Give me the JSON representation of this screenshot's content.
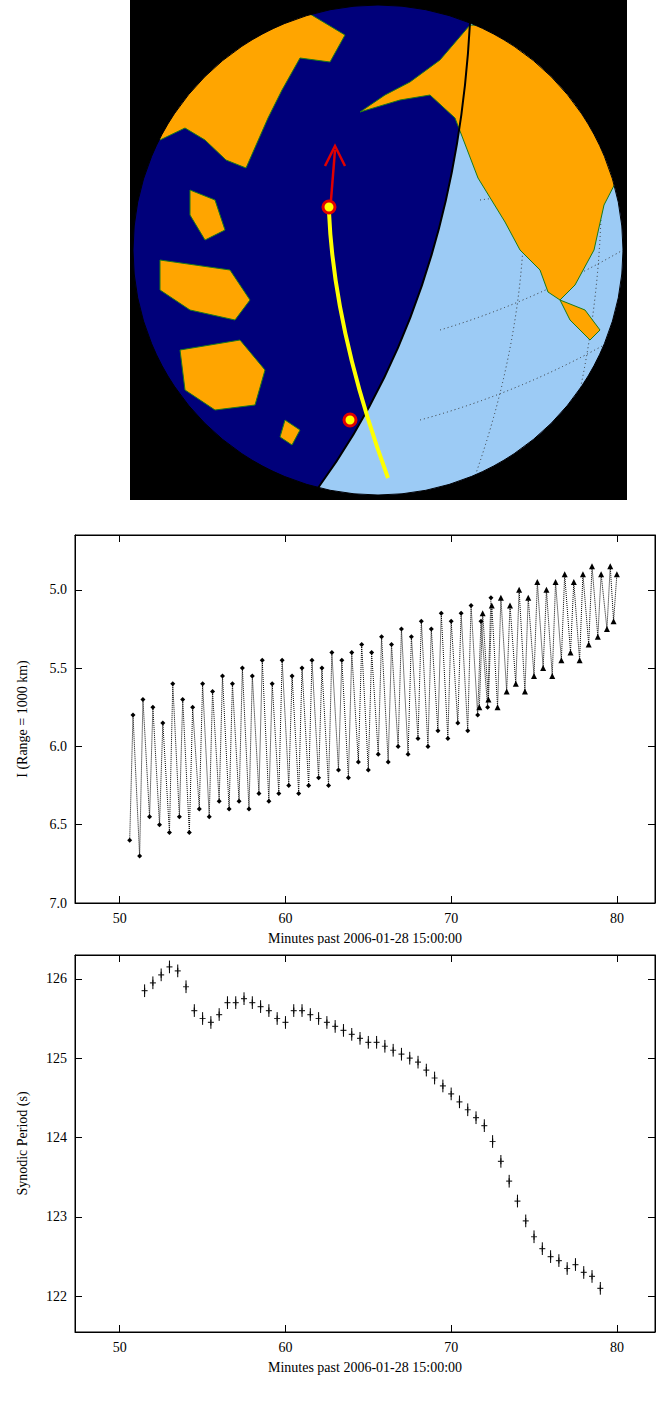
{
  "chart_data": [
    {
      "type": "line",
      "xlabel": "Minutes past 2006-01-28 15:00:00",
      "ylabel": "I (Range = 1000 km)",
      "xlim": [
        47.3,
        82.3
      ],
      "xticks": [
        50,
        60,
        70,
        80
      ],
      "ylim": [
        7,
        4.65
      ],
      "yticks": [
        {
          "value": 5,
          "label": "5.0"
        },
        {
          "value": 5.5,
          "label": "5.5"
        },
        {
          "value": 6,
          "label": "6.0"
        },
        {
          "value": 6.5,
          "label": "6.5"
        },
        {
          "value": 7,
          "label": "7.0"
        }
      ],
      "grid": false,
      "series": [
        {
          "marker": "diamond",
          "line_style": "dotted",
          "color": "#000000",
          "x": [
            50.6,
            50.8,
            51.2,
            51.4,
            51.8,
            52.0,
            52.4,
            52.6,
            53.0,
            53.2,
            53.6,
            53.8,
            54.2,
            54.4,
            54.8,
            55.0,
            55.4,
            55.6,
            56.0,
            56.2,
            56.6,
            56.8,
            57.2,
            57.4,
            57.8,
            58.0,
            58.4,
            58.6,
            59.0,
            59.2,
            59.6,
            59.8,
            60.2,
            60.4,
            60.8,
            61.0,
            61.4,
            61.6,
            62.0,
            62.2,
            62.6,
            62.8,
            63.2,
            63.4,
            63.8,
            64.0,
            64.4,
            64.6,
            65.0,
            65.2,
            65.6,
            65.8,
            66.2,
            66.4,
            66.8,
            67.0,
            67.4,
            67.6,
            68.0,
            68.2,
            68.6,
            68.8,
            69.2,
            69.4,
            69.8,
            70.0,
            70.4,
            70.6,
            71.0,
            71.2,
            71.6,
            71.8,
            72.2,
            72.4
          ],
          "values": [
            6.6,
            5.8,
            6.7,
            5.7,
            6.45,
            5.75,
            6.5,
            5.85,
            6.55,
            5.6,
            6.45,
            5.7,
            6.55,
            5.75,
            6.4,
            5.6,
            6.45,
            5.65,
            6.35,
            5.55,
            6.4,
            5.6,
            6.35,
            5.5,
            6.4,
            5.55,
            6.3,
            5.45,
            6.35,
            5.6,
            6.3,
            5.45,
            6.25,
            5.55,
            6.3,
            5.5,
            6.25,
            5.45,
            6.2,
            5.5,
            6.25,
            5.4,
            6.15,
            5.45,
            6.2,
            5.4,
            6.1,
            5.35,
            6.15,
            5.4,
            6.05,
            5.3,
            6.1,
            5.35,
            6.0,
            5.25,
            6.05,
            5.3,
            5.95,
            5.2,
            6.0,
            5.25,
            5.9,
            5.15,
            5.95,
            5.2,
            5.85,
            5.15,
            5.9,
            5.1,
            5.8,
            5.2,
            5.75,
            5.05
          ]
        },
        {
          "marker": "triangle",
          "line_style": "dotted",
          "color": "#000000",
          "x": [
            71.7,
            71.9,
            72.25,
            72.45,
            72.8,
            73.0,
            73.35,
            73.55,
            73.9,
            74.1,
            74.45,
            74.65,
            75.0,
            75.2,
            75.55,
            75.75,
            76.1,
            76.3,
            76.65,
            76.85,
            77.2,
            77.4,
            77.75,
            77.95,
            78.3,
            78.5,
            78.85,
            79.05,
            79.4,
            79.6,
            79.8,
            80.0
          ],
          "values": [
            5.75,
            5.15,
            5.7,
            5.1,
            5.75,
            5.05,
            5.65,
            5.1,
            5.6,
            5.0,
            5.65,
            5.05,
            5.55,
            4.95,
            5.5,
            5.0,
            5.55,
            4.95,
            5.45,
            4.9,
            5.4,
            4.95,
            5.45,
            4.9,
            5.35,
            4.85,
            5.3,
            4.9,
            5.25,
            4.85,
            5.2,
            4.9
          ]
        }
      ]
    },
    {
      "type": "scatter",
      "xlabel": "Minutes past 2006-01-28 15:00:00",
      "ylabel": "Synodic Period (s)",
      "xlim": [
        47.3,
        82.3
      ],
      "xticks": [
        50,
        60,
        70,
        80
      ],
      "ylim": [
        121.55,
        126.3
      ],
      "yticks": [
        122,
        123,
        124,
        125,
        126
      ],
      "grid": false,
      "series": [
        {
          "marker": "plus",
          "color": "#000000",
          "x": [
            51.5,
            52,
            52.5,
            53,
            53.5,
            54,
            54.5,
            55,
            55.5,
            56,
            56.5,
            57,
            57.5,
            58,
            58.5,
            59,
            59.5,
            60,
            60.5,
            61,
            61.5,
            62,
            62.5,
            63,
            63.5,
            64,
            64.5,
            65,
            65.5,
            66,
            66.5,
            67,
            67.5,
            68,
            68.5,
            69,
            69.5,
            70,
            70.5,
            71,
            71.5,
            72,
            72.5,
            73,
            73.5,
            74,
            74.5,
            75,
            75.5,
            76,
            76.5,
            77,
            77.5,
            78,
            78.5,
            79
          ],
          "values": [
            125.85,
            125.95,
            126.05,
            126.15,
            126.1,
            125.9,
            125.6,
            125.5,
            125.45,
            125.55,
            125.7,
            125.7,
            125.75,
            125.7,
            125.65,
            125.6,
            125.5,
            125.45,
            125.6,
            125.6,
            125.55,
            125.5,
            125.45,
            125.4,
            125.35,
            125.3,
            125.25,
            125.2,
            125.2,
            125.15,
            125.1,
            125.05,
            125.0,
            124.95,
            124.85,
            124.75,
            124.65,
            124.55,
            124.45,
            124.35,
            124.25,
            124.15,
            123.95,
            123.7,
            123.45,
            123.2,
            122.95,
            122.75,
            122.6,
            122.5,
            122.45,
            122.35,
            122.4,
            122.3,
            122.25,
            122.1
          ],
          "errors": [
            0.08,
            0.08,
            0.08,
            0.08,
            0.08,
            0.08,
            0.08,
            0.08,
            0.08,
            0.08,
            0.08,
            0.08,
            0.08,
            0.08,
            0.08,
            0.08,
            0.08,
            0.08,
            0.08,
            0.08,
            0.08,
            0.08,
            0.08,
            0.08,
            0.08,
            0.08,
            0.08,
            0.08,
            0.08,
            0.08,
            0.08,
            0.08,
            0.08,
            0.08,
            0.08,
            0.08,
            0.08,
            0.08,
            0.08,
            0.08,
            0.08,
            0.08,
            0.08,
            0.08,
            0.08,
            0.08,
            0.08,
            0.08,
            0.08,
            0.08,
            0.08,
            0.08,
            0.08,
            0.08,
            0.08,
            0.08
          ]
        }
      ]
    }
  ]
}
